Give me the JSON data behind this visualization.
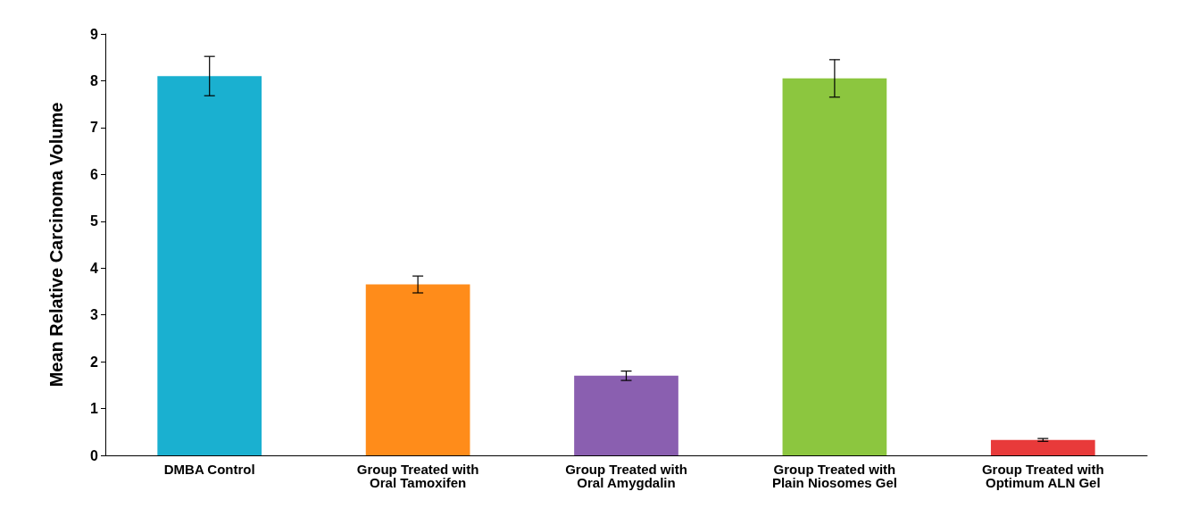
{
  "chart_data": {
    "type": "bar",
    "ylabel": "Mean Relative Carcinoma Volume",
    "categories": [
      "DMBA Control",
      "Group Treated with\nOral Tamoxifen",
      "Group Treated with\nOral Amygdalin",
      "Group Treated with\nPlain Niosomes Gel",
      "Group Treated with\nOptimum ALN Gel"
    ],
    "values": [
      8.1,
      3.65,
      1.7,
      8.05,
      0.33
    ],
    "errors": [
      0.42,
      0.18,
      0.1,
      0.4,
      0.03
    ],
    "colors": [
      "#1ab0d0",
      "#ff8c1a",
      "#8a5fb0",
      "#8cc63f",
      "#e83a3a"
    ],
    "ylim": [
      0,
      9
    ],
    "yticks": [
      0,
      1,
      2,
      3,
      4,
      5,
      6,
      7,
      8,
      9
    ],
    "grid": false
  }
}
